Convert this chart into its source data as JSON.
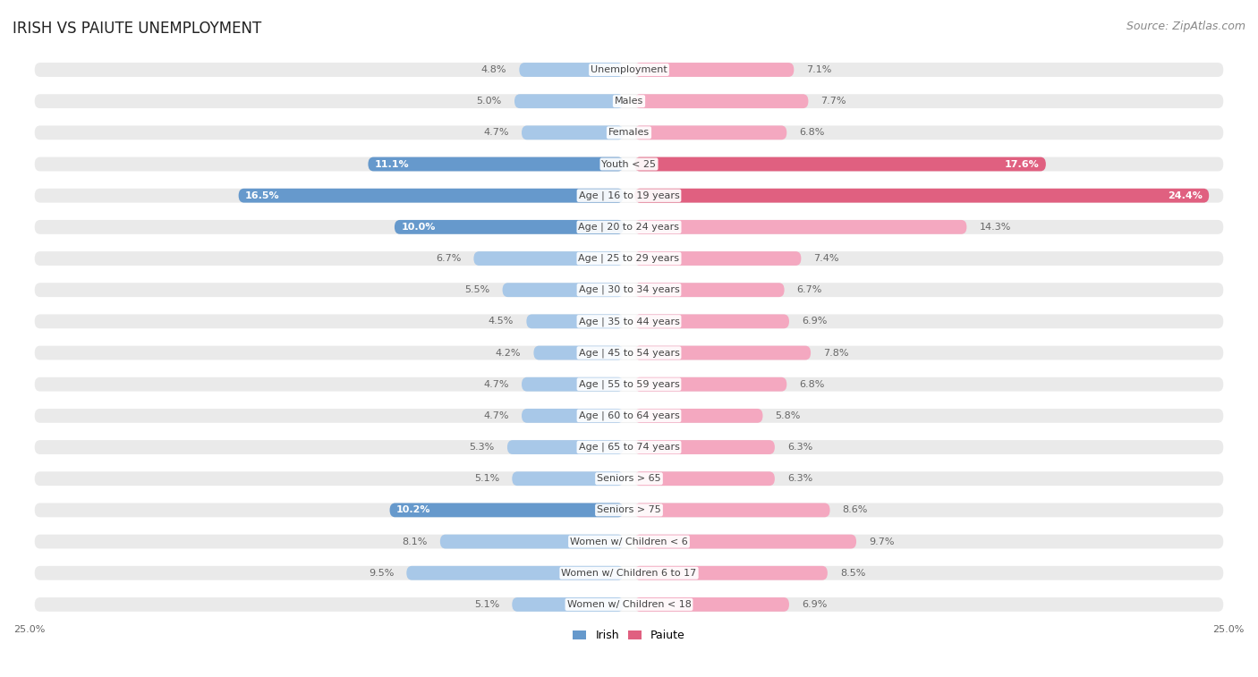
{
  "title": "IRISH VS PAIUTE UNEMPLOYMENT",
  "source": "Source: ZipAtlas.com",
  "categories": [
    "Unemployment",
    "Males",
    "Females",
    "Youth < 25",
    "Age | 16 to 19 years",
    "Age | 20 to 24 years",
    "Age | 25 to 29 years",
    "Age | 30 to 34 years",
    "Age | 35 to 44 years",
    "Age | 45 to 54 years",
    "Age | 55 to 59 years",
    "Age | 60 to 64 years",
    "Age | 65 to 74 years",
    "Seniors > 65",
    "Seniors > 75",
    "Women w/ Children < 6",
    "Women w/ Children 6 to 17",
    "Women w/ Children < 18"
  ],
  "irish_values": [
    4.8,
    5.0,
    4.7,
    11.1,
    16.5,
    10.0,
    6.7,
    5.5,
    4.5,
    4.2,
    4.7,
    4.7,
    5.3,
    5.1,
    10.2,
    8.1,
    9.5,
    5.1
  ],
  "paiute_values": [
    7.1,
    7.7,
    6.8,
    17.6,
    24.4,
    14.3,
    7.4,
    6.7,
    6.9,
    7.8,
    6.8,
    5.8,
    6.3,
    6.3,
    8.6,
    9.7,
    8.5,
    6.9
  ],
  "irish_color_normal": "#a8c8e8",
  "paiute_color_normal": "#f4a8c0",
  "irish_color_dark": "#6699cc",
  "paiute_color_dark": "#e06080",
  "background_color": "#ffffff",
  "row_bg_color": "#eaeaea",
  "axis_max": 25.0,
  "legend_irish": "Irish",
  "legend_paiute": "Paiute",
  "title_fontsize": 12,
  "source_fontsize": 9,
  "label_fontsize": 8.0,
  "value_fontsize": 8.0,
  "legend_fontsize": 9,
  "highlight_indices": [
    3,
    4,
    5,
    14
  ],
  "paiute_dark_indices": [
    3,
    4
  ]
}
